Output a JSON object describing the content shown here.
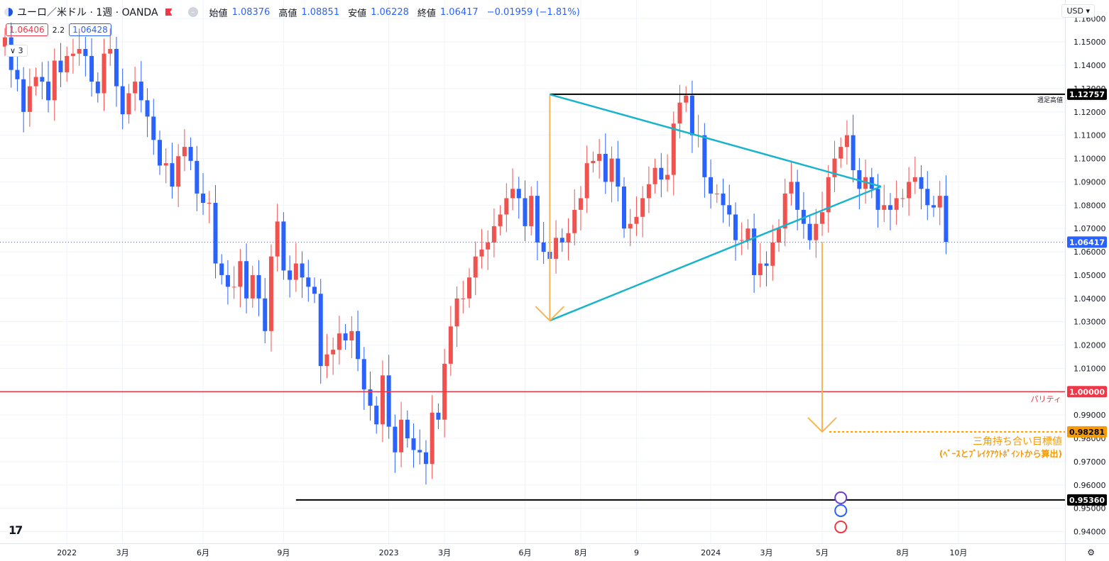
{
  "header": {
    "symbol": "ユーロ／米ドル · 1週 · OANDA",
    "open_label": "始値",
    "open": "1.08376",
    "high_label": "高値",
    "high": "1.08851",
    "low_label": "安値",
    "low": "1.06228",
    "close_label": "終値",
    "close": "1.06417",
    "change": "−0.01959 (−1.81%)"
  },
  "quote": {
    "sell": "1.06406",
    "spread": "2.2",
    "buy": "1.06428"
  },
  "indicator_count": "3",
  "currency": "USD",
  "tv_logo": "17",
  "colors": {
    "up": "#ef5350",
    "down": "#2962ff",
    "trend": "#18b4cc",
    "arrow": "#f5b655",
    "parity": "#f23645",
    "target": "#f59b0a"
  },
  "chart_data": {
    "type": "candlestick",
    "title": "ユーロ／米ドル · 1週 · OANDA",
    "ylim": [
      0.935,
      1.168
    ],
    "y_ticks": [
      "1.16000",
      "1.15000",
      "1.14000",
      "1.13000",
      "1.12000",
      "1.11000",
      "1.10000",
      "1.09000",
      "1.08000",
      "1.07000",
      "1.06000",
      "1.05000",
      "1.04000",
      "1.03000",
      "1.02000",
      "1.01000",
      "1.00000",
      "0.99000",
      "0.98000",
      "0.97000",
      "0.96000",
      "0.95000",
      "0.94000"
    ],
    "x_ticks": [
      {
        "label": "2022",
        "week": 10
      },
      {
        "label": "3月",
        "week": 19
      },
      {
        "label": "6月",
        "week": 32
      },
      {
        "label": "9月",
        "week": 45
      },
      {
        "label": "2023",
        "week": 62
      },
      {
        "label": "3月",
        "week": 71
      },
      {
        "label": "6月",
        "week": 84
      },
      {
        "label": "8月",
        "week": 93
      },
      {
        "label": "9",
        "week": 102
      },
      {
        "label": "2024",
        "week": 114
      },
      {
        "label": "3月",
        "week": 123
      },
      {
        "label": "5月",
        "week": 132
      },
      {
        "label": "8月",
        "week": 145
      },
      {
        "label": "10月",
        "week": 154
      }
    ],
    "closes": [
      1.152,
      1.138,
      1.134,
      1.12,
      1.131,
      1.135,
      1.133,
      1.125,
      1.142,
      1.137,
      1.144,
      1.145,
      1.147,
      1.144,
      1.133,
      1.128,
      1.145,
      1.147,
      1.131,
      1.119,
      1.128,
      1.133,
      1.125,
      1.118,
      1.108,
      1.097,
      1.098,
      1.088,
      1.101,
      1.105,
      1.099,
      1.085,
      1.081,
      1.081,
      1.055,
      1.05,
      1.045,
      1.045,
      1.056,
      1.04,
      1.05,
      1.04,
      1.026,
      1.058,
      1.073,
      1.052,
      1.048,
      1.055,
      1.049,
      1.045,
      1.042,
      1.011,
      1.016,
      1.018,
      1.025,
      1.022,
      1.026,
      1.014,
      1.001,
      0.994,
      0.986,
      1.007,
      0.985,
      0.974,
      0.988,
      0.98,
      0.975,
      0.974,
      0.969,
      0.991,
      0.988,
      1.012,
      1.028,
      1.04,
      1.04,
      1.049,
      1.058,
      1.061,
      1.064,
      1.071,
      1.076,
      1.083,
      1.087,
      1.083,
      1.071,
      1.084,
      1.064,
      1.06,
      1.057,
      1.066,
      1.064,
      1.068,
      1.078,
      1.083,
      1.098,
      1.099,
      1.102,
      1.09,
      1.1,
      1.088,
      1.07,
      1.072,
      1.075,
      1.083,
      1.089,
      1.096,
      1.091,
      1.093,
      1.115,
      1.124,
      1.127,
      1.11,
      1.11,
      1.092,
      1.085,
      1.085,
      1.08,
      1.076,
      1.065,
      1.065,
      1.07,
      1.05,
      1.055,
      1.054,
      1.064,
      1.07,
      1.085,
      1.09,
      1.078,
      1.072,
      1.065,
      1.072,
      1.077,
      1.092,
      1.1,
      1.105,
      1.11,
      1.095,
      1.087,
      1.092,
      1.087,
      1.078,
      1.08,
      1.078,
      1.083,
      1.083,
      1.09,
      1.092,
      1.087,
      1.08,
      1.079,
      1.084,
      1.0642
    ],
    "price_labels": [
      {
        "text": "1.12757",
        "value": 1.12757,
        "style": "dark"
      },
      {
        "text": "1.06417",
        "value": 1.06417,
        "style": "blue"
      },
      {
        "text": "1.00000",
        "value": 1.0,
        "style": "red"
      },
      {
        "text": "0.98281",
        "value": 0.98281,
        "style": "orange"
      },
      {
        "text": "0.95360",
        "value": 0.9536,
        "style": "dark"
      }
    ],
    "annotations": {
      "high_line_label": "週足高値",
      "parity_label": "パリティ",
      "target_line1": "三角持ち合い目標値",
      "target_line2": "(ﾍﾞｰｽとﾌﾞﾚｲｸｱｳﾄﾎﾟｲﾝﾄから算出)"
    },
    "lines": {
      "high_line": {
        "from_week": 88,
        "value": 1.12757
      },
      "low_line": {
        "from_week": 47,
        "value": 0.9536
      },
      "parity": {
        "value": 1.0
      },
      "triangle_upper": [
        {
          "week": 88,
          "value": 1.1275
        },
        {
          "week": 141.5,
          "value": 1.088
        }
      ],
      "triangle_lower": [
        {
          "week": 88,
          "value": 1.0305
        },
        {
          "week": 141.5,
          "value": 1.088
        }
      ],
      "arrow_left": {
        "week": 88,
        "from": 1.127,
        "to": 1.0305
      },
      "arrow_right": {
        "week": 132,
        "from": 1.0642,
        "to": 0.9828
      },
      "target_line": {
        "from_week": 132,
        "value": 0.98281
      }
    }
  }
}
